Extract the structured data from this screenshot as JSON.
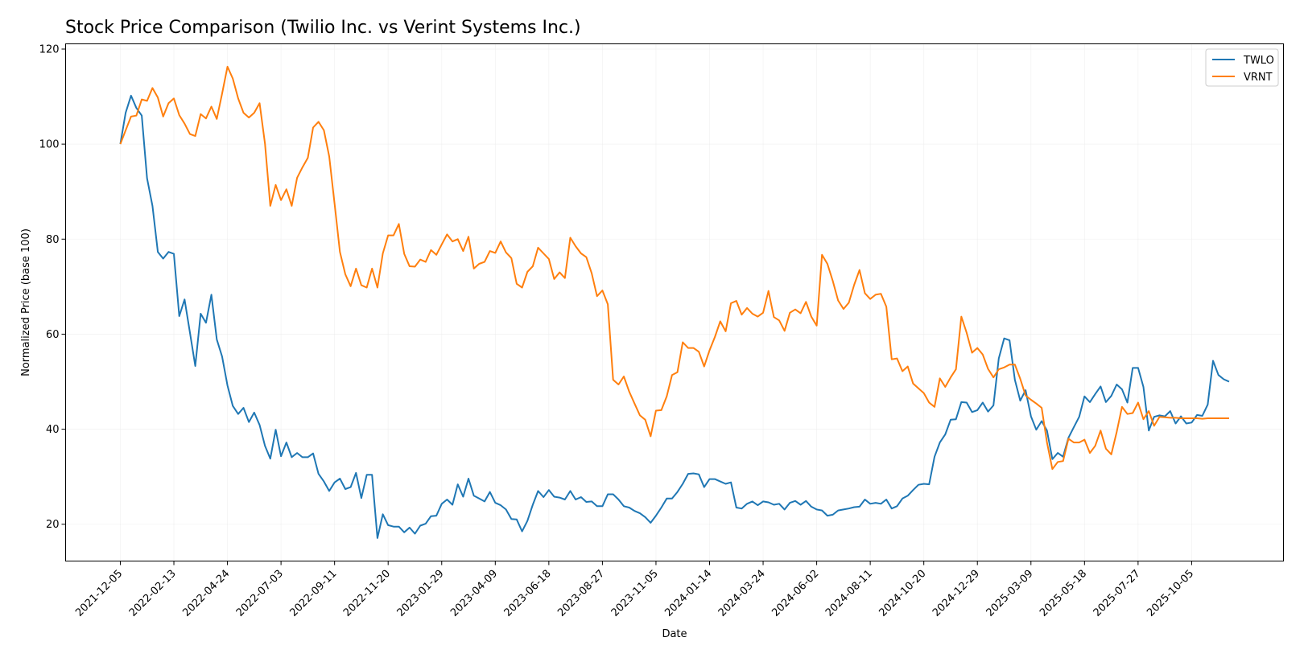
{
  "chart_data": {
    "type": "line",
    "title": "Stock Price Comparison (Twilio Inc. vs Verint Systems Inc.)",
    "xlabel": "Date",
    "ylabel": "Normalized Price (base 100)",
    "x_start_date": "2021-12-05",
    "x_step_days": 7,
    "xlim_days_from_start": [
      -71.5,
      1520
    ],
    "ylim": [
      12.25,
      121.1
    ],
    "grid": true,
    "legend_position": "top-right",
    "x_ticks": [
      "2021-12-05",
      "2022-02-13",
      "2022-04-24",
      "2022-07-03",
      "2022-09-11",
      "2022-11-20",
      "2023-01-29",
      "2023-04-09",
      "2023-06-18",
      "2023-08-27",
      "2023-11-05",
      "2024-01-14",
      "2024-03-24",
      "2024-06-02",
      "2024-08-11",
      "2024-10-20",
      "2024-12-29",
      "2025-03-09",
      "2025-05-18",
      "2025-07-27",
      "2025-10-05"
    ],
    "x_tick_step_days": 70,
    "y_ticks": [
      20,
      40,
      60,
      80,
      100,
      120
    ],
    "series": [
      {
        "name": "TWLO",
        "color": "#1f77b4",
        "values": [
          100,
          106.6,
          110.2,
          107.6,
          106.0,
          92.8,
          87.0,
          77.3,
          75.9,
          77.3,
          76.9,
          63.8,
          67.3,
          60.3,
          53.3,
          64.3,
          62.4,
          68.3,
          58.9,
          55.3,
          49.2,
          44.9,
          43.2,
          44.5,
          41.5,
          43.5,
          40.9,
          36.5,
          33.8,
          39.9,
          34.3,
          37.2,
          34.1,
          35.0,
          34.1,
          34.1,
          34.9,
          30.6,
          29.0,
          27.0,
          28.8,
          29.6,
          27.4,
          27.8,
          30.8,
          25.5,
          30.4,
          30.4,
          17.1,
          22.1,
          19.8,
          19.5,
          19.5,
          18.3,
          19.3,
          18.0,
          19.7,
          20.1,
          21.7,
          21.8,
          24.3,
          25.2,
          24.1,
          28.4,
          25.8,
          29.6,
          26.0,
          25.4,
          24.8,
          26.8,
          24.5,
          24.0,
          23.1,
          21.1,
          21.0,
          18.5,
          20.7,
          24.1,
          27.0,
          25.7,
          27.2,
          25.8,
          25.6,
          25.2,
          27.0,
          25.2,
          25.7,
          24.7,
          24.8,
          23.8,
          23.8,
          26.3,
          26.3,
          25.2,
          23.8,
          23.5,
          22.8,
          22.3,
          21.5,
          20.3,
          21.8,
          23.5,
          25.4,
          25.4,
          26.8,
          28.5,
          30.6,
          30.7,
          30.5,
          27.8,
          29.5,
          29.5,
          29.0,
          28.5,
          28.8,
          23.5,
          23.3,
          24.3,
          24.8,
          24.0,
          24.8,
          24.6,
          24.1,
          24.3,
          23.1,
          24.5,
          24.9,
          24.1,
          24.9,
          23.7,
          23.1,
          22.9,
          21.8,
          22.0,
          22.9,
          23.1,
          23.3,
          23.6,
          23.7,
          25.2,
          24.3,
          24.5,
          24.3,
          25.2,
          23.3,
          23.8,
          25.4,
          26.0,
          27.2,
          28.3,
          28.5,
          28.4,
          34.2,
          37.2,
          38.9,
          42.0,
          42.1,
          45.7,
          45.6,
          43.6,
          44.0,
          45.6,
          43.7,
          45.0,
          54.9,
          59.1,
          58.7,
          50.4,
          46.0,
          48.2,
          42.7,
          39.9,
          41.7,
          39.7,
          33.7,
          35.0,
          34.2,
          38.2,
          40.4,
          42.6,
          46.9,
          45.7,
          47.4,
          49.0,
          45.7,
          47.0,
          49.4,
          48.4,
          45.6,
          52.9,
          52.9,
          48.9,
          39.7,
          42.6,
          42.9,
          42.7,
          43.8,
          41.2,
          42.7,
          41.2,
          41.4,
          43.0,
          42.8,
          45.2,
          54.4,
          51.4,
          50.5,
          50.0
        ]
      },
      {
        "name": "VRNT",
        "color": "#ff7f0e",
        "values": [
          100,
          102.9,
          105.8,
          106.0,
          109.4,
          109.1,
          111.8,
          109.8,
          105.8,
          108.6,
          109.6,
          106.1,
          104.3,
          102.1,
          101.7,
          106.3,
          105.4,
          107.9,
          105.3,
          110.6,
          116.3,
          113.8,
          109.6,
          106.6,
          105.6,
          106.6,
          108.6,
          100.1,
          87.0,
          91.4,
          88.2,
          90.5,
          87.0,
          92.9,
          95.1,
          97.1,
          103.5,
          104.7,
          102.9,
          97.4,
          87.4,
          77.3,
          72.6,
          70.1,
          73.8,
          70.3,
          69.8,
          73.8,
          69.8,
          77.0,
          80.8,
          80.8,
          83.2,
          76.9,
          74.3,
          74.2,
          75.7,
          75.2,
          77.7,
          76.7,
          78.9,
          81.0,
          79.5,
          80.0,
          77.5,
          80.5,
          73.8,
          74.8,
          75.2,
          77.5,
          77.1,
          79.5,
          77.2,
          76.0,
          70.6,
          69.8,
          73.1,
          74.3,
          78.2,
          77.0,
          75.8,
          71.6,
          73.0,
          71.8,
          80.3,
          78.5,
          77.0,
          76.2,
          72.8,
          68.0,
          69.2,
          66.3,
          50.4,
          49.4,
          51.1,
          47.9,
          45.4,
          42.9,
          42.0,
          38.5,
          43.9,
          44.0,
          46.9,
          51.4,
          52.0,
          58.3,
          57.1,
          57.1,
          56.3,
          53.2,
          56.6,
          59.4,
          62.7,
          60.6,
          66.5,
          67.0,
          64.1,
          65.5,
          64.3,
          63.7,
          64.5,
          69.1,
          63.6,
          62.9,
          60.7,
          64.5,
          65.2,
          64.4,
          66.8,
          63.7,
          61.8,
          76.7,
          74.8,
          71.2,
          67.1,
          65.3,
          66.6,
          70.4,
          73.5,
          68.6,
          67.4,
          68.3,
          68.5,
          65.8,
          54.7,
          54.9,
          52.2,
          53.2,
          49.6,
          48.6,
          47.6,
          45.6,
          44.7,
          50.7,
          48.9,
          50.9,
          52.6,
          63.7,
          60.3,
          56.1,
          57.1,
          55.7,
          52.7,
          50.9,
          52.6,
          53.0,
          53.6,
          53.6,
          50.6,
          47.1,
          46.2,
          45.4,
          44.5,
          37.2,
          31.6,
          33.1,
          33.3,
          38.0,
          37.2,
          37.2,
          37.8,
          35.0,
          36.5,
          39.7,
          35.9,
          34.7,
          39.4,
          44.7,
          43.2,
          43.4,
          45.6,
          42.1,
          43.8,
          40.7,
          42.6,
          42.5,
          42.4,
          42.4,
          42.3,
          42.3,
          42.3,
          42.3,
          42.2,
          42.3,
          42.3,
          42.3,
          42.3,
          42.3
        ]
      }
    ]
  }
}
